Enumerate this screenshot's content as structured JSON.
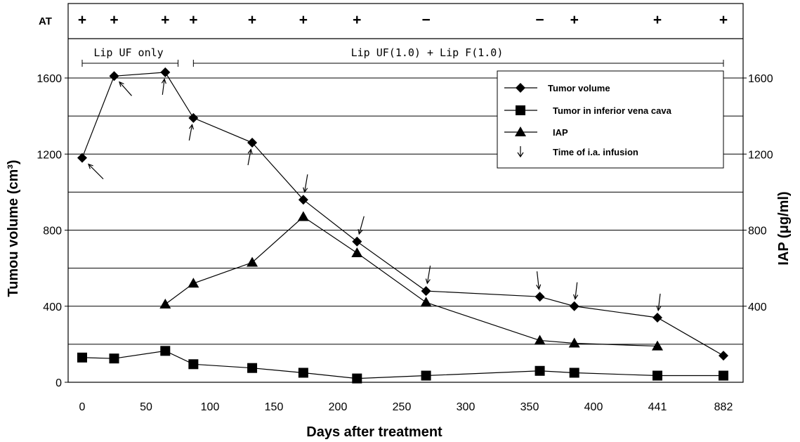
{
  "chart_data": {
    "type": "line",
    "title": "",
    "xlabel": "Days after treatment",
    "ylabel_left": "Tumou volume (cm³)",
    "ylabel_right": "IAP (μg/ml)",
    "x_categories": [
      "0",
      "25",
      "50",
      "65",
      "87",
      "133",
      "173",
      "215",
      "269",
      "358",
      "385",
      "441",
      "882"
    ],
    "x_tick_labels": [
      "0",
      "50",
      "100",
      "150",
      "200",
      "250",
      "300",
      "350",
      "400",
      "441",
      "882"
    ],
    "ylim_left": [
      0,
      1800
    ],
    "ylim_right": [
      0,
      1800
    ],
    "left_ticks": [
      "0",
      "400",
      "800",
      "1200",
      "1600"
    ],
    "right_ticks": [
      "400",
      "800",
      "1200",
      "1600"
    ],
    "grid": true,
    "legend_position": "top-right",
    "series": [
      {
        "name": "Tumor volume",
        "marker": "diamond",
        "axis": "left",
        "points": [
          [
            0,
            1180
          ],
          [
            25,
            1610
          ],
          [
            65,
            1630
          ],
          [
            87,
            1390
          ],
          [
            133,
            1260
          ],
          [
            173,
            960
          ],
          [
            215,
            740
          ],
          [
            269,
            480
          ],
          [
            358,
            450
          ],
          [
            385,
            400
          ],
          [
            441,
            340
          ],
          [
            882,
            140
          ]
        ]
      },
      {
        "name": "Tumor in inferior vena cava",
        "marker": "square",
        "axis": "left",
        "points": [
          [
            0,
            130
          ],
          [
            25,
            125
          ],
          [
            65,
            165
          ],
          [
            87,
            95
          ],
          [
            133,
            75
          ],
          [
            173,
            50
          ],
          [
            215,
            20
          ],
          [
            269,
            35
          ],
          [
            358,
            60
          ],
          [
            385,
            50
          ],
          [
            441,
            35
          ],
          [
            882,
            35
          ]
        ]
      },
      {
        "name": "IAP",
        "marker": "triangle",
        "axis": "right",
        "points": [
          [
            65,
            410
          ],
          [
            87,
            520
          ],
          [
            133,
            630
          ],
          [
            173,
            870
          ],
          [
            215,
            680
          ],
          [
            269,
            420
          ],
          [
            358,
            220
          ],
          [
            385,
            205
          ],
          [
            441,
            190
          ]
        ]
      }
    ],
    "infusion_arrows": {
      "name": "Time of i.a. infusion",
      "x": [
        0,
        25,
        65,
        87,
        133,
        173,
        215,
        269,
        358,
        385,
        441
      ]
    },
    "at_row": {
      "label": "AT",
      "x": [
        0,
        25,
        65,
        87,
        133,
        173,
        215,
        269,
        358,
        385,
        441,
        882
      ],
      "signs": [
        "+",
        "+",
        "+",
        "+",
        "+",
        "+",
        "+",
        "−",
        "−",
        "+",
        "+",
        "+"
      ]
    },
    "phases": [
      {
        "label": "Lip UF only",
        "x_start": 0,
        "x_end": 75
      },
      {
        "label": "Lip UF(1.0) + Lip F(1.0)",
        "x_start": 87,
        "x_end": 882
      }
    ]
  }
}
